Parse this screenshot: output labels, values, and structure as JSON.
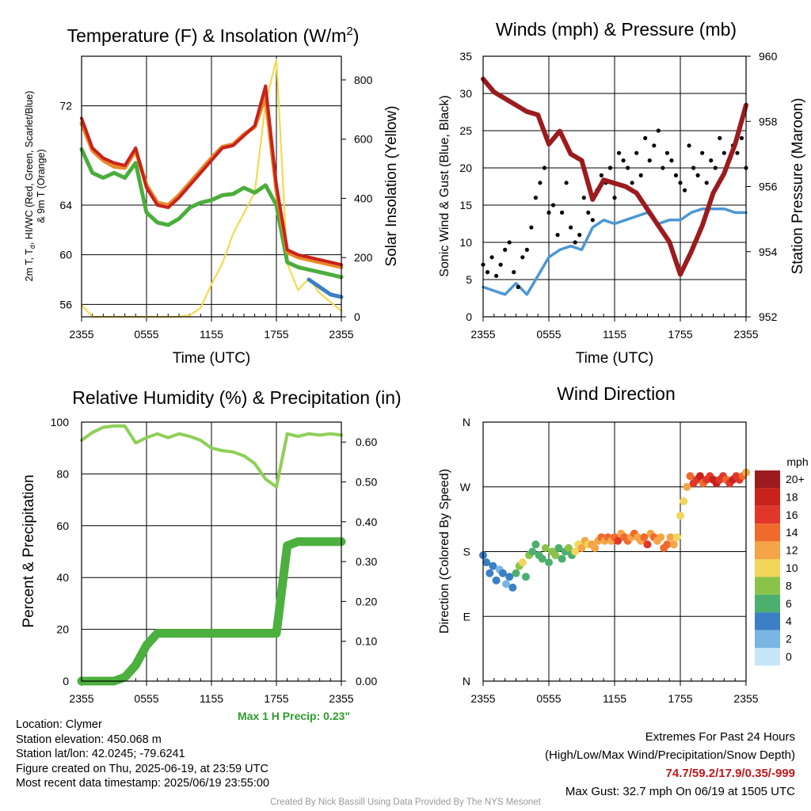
{
  "colors": {
    "temp_red": "#c8221c",
    "temp_orange": "#e8892a",
    "temp_green": "#4cad3c",
    "temp_blue": "#3b7fc4",
    "insolation": "#f5d94e",
    "wind_speed": "#4d97d6",
    "gust": "#000000",
    "pressure": "#9b1b1e",
    "rh": "#8fcf57",
    "precip": "#4cb03e"
  },
  "chart_data": [
    {
      "id": "temperature",
      "type": "line",
      "title": "Temperature (F) & Insolation (W/m²)",
      "title_main": "Temperature (F) & Insolation (W/m",
      "title_sup": "2",
      "title_end": ")",
      "xlabel": "Time (UTC)",
      "ylabel_line1": "2m T, T",
      "ylabel_sub": "d",
      "ylabel_rest": ", HI/WC (Red, Green, Scarlet/Blue)",
      "ylabel_line2": "& 9m T (Orange)",
      "y2label": "Solar Insolation (Yellow)",
      "xticks": [
        "2355",
        "0555",
        "1155",
        "1755",
        "2355"
      ],
      "yticks": [
        "56",
        "60",
        "64",
        "72"
      ],
      "ylim": [
        55,
        76
      ],
      "y2ticks": [
        "0",
        "200",
        "400",
        "600",
        "800"
      ],
      "y2lim": [
        0,
        880
      ],
      "x": [
        0,
        1,
        2,
        3,
        4,
        5,
        6,
        7,
        8,
        9,
        10,
        11,
        12,
        13,
        14,
        15,
        16,
        17,
        18,
        19,
        20,
        21,
        22,
        23,
        24
      ],
      "series": [
        {
          "key": "temp_red",
          "values": [
            71.0,
            68.6,
            67.8,
            67.4,
            67.2,
            68.6,
            65.4,
            64.0,
            63.8,
            64.6,
            65.6,
            66.6,
            67.6,
            68.6,
            68.8,
            69.6,
            70.4,
            73.6,
            65.6,
            60.4,
            60.0,
            59.8,
            59.6,
            59.4,
            59.2
          ]
        },
        {
          "key": "temp_orange",
          "values": [
            70.6,
            68.4,
            67.6,
            67.1,
            67.0,
            68.4,
            65.6,
            64.2,
            64.0,
            64.8,
            65.8,
            66.8,
            67.8,
            68.7,
            68.9,
            69.7,
            70.3,
            72.8,
            65.2,
            60.2,
            59.8,
            59.6,
            59.4,
            59.2,
            59.0
          ]
        },
        {
          "key": "temp_green",
          "values": [
            68.5,
            66.6,
            66.2,
            66.6,
            66.2,
            67.4,
            63.4,
            62.6,
            62.4,
            62.9,
            63.8,
            64.2,
            64.4,
            64.8,
            64.9,
            65.4,
            65.0,
            65.6,
            64.0,
            59.4,
            59.0,
            58.8,
            58.6,
            58.4,
            58.2
          ]
        },
        {
          "key": "temp_blue",
          "values": [
            null,
            null,
            null,
            null,
            null,
            null,
            null,
            null,
            null,
            null,
            null,
            null,
            null,
            null,
            null,
            null,
            null,
            null,
            null,
            null,
            null,
            58.0,
            57.4,
            56.8,
            56.6
          ]
        },
        {
          "key": "insolation",
          "axis": "y2",
          "values": [
            40,
            0,
            0,
            0,
            0,
            0,
            0,
            0,
            0,
            0,
            5,
            30,
            110,
            180,
            280,
            350,
            420,
            720,
            870,
            180,
            90,
            130,
            80,
            50,
            20
          ]
        }
      ]
    },
    {
      "id": "winds",
      "type": "line",
      "title": "Winds (mph) & Pressure (mb)",
      "xlabel": "Time (UTC)",
      "ylabel": "Sonic Wind & Gust (Blue, Black)",
      "y2label": "Station Pressure (Maroon)",
      "xticks": [
        "2355",
        "0555",
        "1155",
        "1755",
        "2355"
      ],
      "yticks": [
        "0",
        "5",
        "10",
        "15",
        "20",
        "25",
        "30",
        "35"
      ],
      "ylim": [
        0,
        35
      ],
      "y2ticks": [
        "952",
        "954",
        "956",
        "958",
        "960"
      ],
      "y2lim": [
        952,
        960
      ],
      "x": [
        0,
        1,
        2,
        3,
        4,
        5,
        6,
        7,
        8,
        9,
        10,
        11,
        12,
        13,
        14,
        15,
        16,
        17,
        18,
        19,
        20,
        21,
        22,
        23,
        24
      ],
      "series": [
        {
          "key": "wind_speed",
          "values": [
            4,
            3.5,
            3,
            4.5,
            3,
            5.5,
            8,
            9,
            9.5,
            9,
            12,
            13,
            12.5,
            13,
            13.5,
            14,
            12.5,
            13,
            13,
            14,
            14.5,
            14.5,
            14.5,
            14,
            14
          ]
        },
        {
          "key": "pressure",
          "axis": "y2",
          "values": [
            959.3,
            958.9,
            958.7,
            958.5,
            958.3,
            958.2,
            957.3,
            957.7,
            957.0,
            956.8,
            955.6,
            956.2,
            956.1,
            956.0,
            955.8,
            955.3,
            954.8,
            954.3,
            953.3,
            954.0,
            954.8,
            955.8,
            956.4,
            957.3,
            958.5
          ]
        }
      ],
      "gust_x": [
        0,
        0.4,
        0.8,
        1.2,
        1.6,
        2.0,
        2.4,
        2.8,
        3.2,
        3.6,
        4.0,
        4.4,
        4.8,
        5.2,
        5.6,
        6.0,
        6.4,
        6.8,
        7.2,
        7.6,
        8.0,
        8.4,
        8.8,
        9.2,
        9.6,
        10.0,
        10.4,
        10.8,
        11.2,
        11.6,
        12.0,
        12.4,
        12.8,
        13.2,
        13.6,
        14.0,
        14.4,
        14.8,
        15.2,
        15.6,
        16.0,
        16.4,
        16.8,
        17.2,
        17.6,
        18.0,
        18.4,
        18.8,
        19.2,
        19.6,
        20.0,
        20.4,
        20.8,
        21.2,
        21.6,
        22.0,
        22.4,
        22.8,
        23.2,
        23.6,
        24.0
      ],
      "gust_values": [
        7,
        6,
        8,
        5.5,
        7,
        9,
        10,
        6,
        4,
        8,
        9,
        12,
        16,
        18,
        20,
        14,
        15,
        11,
        14,
        18,
        12,
        10,
        11,
        16,
        14,
        13,
        17,
        19,
        18,
        20,
        16,
        22,
        21,
        20,
        18,
        22,
        19,
        24,
        21,
        23,
        25,
        20,
        22,
        21,
        19,
        18,
        17,
        23,
        20,
        19,
        22,
        18,
        21,
        20,
        24,
        22,
        21,
        23,
        22,
        24,
        20
      ]
    },
    {
      "id": "humidity",
      "type": "line",
      "title": "Relative Humidity (%) & Precipitation (in)",
      "xlabel": "",
      "ylabel": "Percent & Precipitation",
      "xticks": [
        "2355",
        "0555",
        "1155",
        "1755",
        "2355"
      ],
      "yticks": [
        "0",
        "20",
        "40",
        "60",
        "80",
        "100"
      ],
      "ylim": [
        0,
        100
      ],
      "y2ticks": [
        "0.00",
        "0.10",
        "0.20",
        "0.30",
        "0.40",
        "0.50",
        "0.60"
      ],
      "y2lim": [
        0,
        0.65
      ],
      "x": [
        0,
        1,
        2,
        3,
        4,
        5,
        6,
        7,
        8,
        9,
        10,
        11,
        12,
        13,
        14,
        15,
        16,
        17,
        18,
        19,
        20,
        21,
        22,
        23,
        24
      ],
      "series": [
        {
          "key": "rh",
          "values": [
            93,
            96,
            98,
            98.5,
            98.5,
            92,
            94,
            95.5,
            94,
            95.5,
            94.5,
            93,
            90,
            89,
            88.5,
            87,
            84,
            78,
            75,
            95.5,
            94.5,
            95.5,
            95,
            95.5,
            95
          ]
        },
        {
          "key": "precip",
          "axis": "y2",
          "values": [
            0,
            0,
            0,
            0,
            0.01,
            0.04,
            0.09,
            0.12,
            0.12,
            0.12,
            0.12,
            0.12,
            0.12,
            0.12,
            0.12,
            0.12,
            0.12,
            0.12,
            0.12,
            0.34,
            0.35,
            0.35,
            0.35,
            0.35,
            0.35
          ]
        }
      ],
      "max_precip_label": "Max 1 H Precip: 0.23\""
    },
    {
      "id": "wind_direction",
      "type": "scatter",
      "title": "Wind Direction",
      "ylabel": "Direction (Colored By Speed)",
      "xticks": [
        "2355",
        "0555",
        "1155",
        "1755",
        "2355"
      ],
      "yticks": [
        "N",
        "E",
        "S",
        "W",
        "N"
      ],
      "ylim": [
        0,
        360
      ],
      "legend_title": "mph",
      "legend_labels": [
        "20+",
        "18",
        "16",
        "14",
        "12",
        "10",
        "8",
        "6",
        "4",
        "2",
        "0"
      ],
      "legend_colors": [
        "#9b1b1e",
        "#c8221c",
        "#e0372a",
        "#ef6a2c",
        "#f5a447",
        "#f2d65a",
        "#8bc34a",
        "#4caf6e",
        "#3b7fc4",
        "#7ab5e3",
        "#c6e5f8"
      ],
      "legend_placement": "right",
      "x": [
        0.0,
        0.3,
        0.6,
        0.9,
        1.2,
        1.5,
        1.8,
        2.1,
        2.4,
        2.7,
        3.0,
        3.3,
        3.6,
        3.9,
        4.2,
        4.5,
        4.8,
        5.1,
        5.4,
        5.7,
        6.0,
        6.3,
        6.6,
        6.9,
        7.2,
        7.5,
        7.8,
        8.1,
        8.4,
        8.7,
        9.0,
        9.3,
        9.6,
        9.9,
        10.2,
        10.5,
        10.8,
        11.1,
        11.4,
        11.7,
        12.0,
        12.3,
        12.6,
        12.9,
        13.2,
        13.5,
        13.8,
        14.1,
        14.4,
        14.7,
        15.0,
        15.3,
        15.6,
        15.9,
        16.2,
        16.5,
        16.8,
        17.1,
        17.4,
        17.7,
        18.0,
        18.3,
        18.6,
        18.9,
        19.2,
        19.5,
        19.8,
        20.1,
        20.4,
        20.7,
        21.0,
        21.3,
        21.6,
        21.9,
        22.2,
        22.5,
        22.8,
        23.1,
        23.4,
        23.7,
        24.0
      ],
      "values": [
        175,
        165,
        150,
        160,
        140,
        155,
        150,
        135,
        145,
        130,
        150,
        160,
        165,
        145,
        175,
        180,
        190,
        175,
        170,
        185,
        165,
        180,
        175,
        185,
        170,
        180,
        185,
        175,
        180,
        190,
        185,
        195,
        190,
        190,
        185,
        195,
        200,
        195,
        200,
        195,
        200,
        195,
        205,
        200,
        195,
        200,
        205,
        200,
        195,
        200,
        190,
        205,
        200,
        195,
        200,
        185,
        190,
        200,
        190,
        200,
        230,
        250,
        270,
        285,
        275,
        280,
        285,
        275,
        280,
        285,
        280,
        275,
        280,
        285,
        280,
        275,
        280,
        285,
        280,
        285,
        290
      ],
      "speeds": [
        4,
        4,
        4,
        3,
        4,
        2,
        4,
        2,
        4,
        3,
        6,
        8,
        10,
        6,
        8,
        6,
        5,
        6,
        6,
        7,
        5,
        8,
        7,
        5,
        6,
        5,
        7,
        6,
        9,
        10,
        11,
        12,
        10,
        12,
        11,
        12,
        13,
        12,
        14,
        12,
        13,
        15,
        12,
        13,
        14,
        12,
        13,
        11,
        12,
        14,
        15,
        12,
        13,
        12,
        11,
        13,
        14,
        12,
        11,
        10,
        9,
        10,
        12,
        14,
        15,
        16,
        17,
        14,
        15,
        16,
        17,
        18,
        15,
        16,
        14,
        15,
        17,
        16,
        15,
        14,
        12
      ]
    }
  ],
  "info": {
    "location": "Location: Clymer",
    "elevation": "Station elevation: 450.068 m",
    "latlon": "Station lat/lon: 42.0245; -79.6241",
    "created": "Figure created on Thu, 2025-06-19, at 23:59 UTC",
    "recent": "Most recent data timestamp: 2025/06/19 23:55:00"
  },
  "extremes": {
    "title": "Extremes For Past 24 Hours",
    "subtitle": "(High/Low/Max Wind/Precipitation/Snow Depth)",
    "values": "74.7/59.2/17.9/0.35/-999",
    "gust": "Max Gust: 32.7 mph On 06/19 at 1505 UTC"
  },
  "credit": "Created By Nick Bassill Using Data Provided By The NYS Mesonet"
}
